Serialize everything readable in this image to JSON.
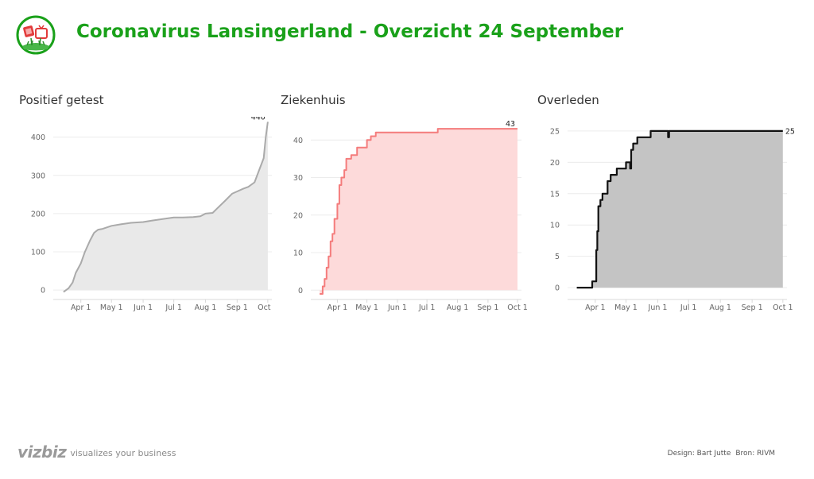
{
  "header": {
    "title": "Coronavirus Lansingerland - Overzicht 24 September",
    "logo_icon": "flowers-tv-logo-icon"
  },
  "colors": {
    "title": "#1aa11a",
    "positief_line": "#aaaaaa",
    "positief_fill": "#e9e9e9",
    "ziekenhuis_line": "#f47c7c",
    "ziekenhuis_fill": "#fddada",
    "overleden_line": "#111111",
    "overleden_fill": "#c4c4c4"
  },
  "chart_data": [
    {
      "type": "area",
      "title": "Positief getest",
      "xlabel": "",
      "ylabel": "",
      "x_tick_labels": [
        "Apr 1",
        "May 1",
        "Jun 1",
        "Jul 1",
        "Aug 1",
        "Sep 1",
        "Oct 1"
      ],
      "y_ticks": [
        0,
        100,
        200,
        300,
        400
      ],
      "ylim": [
        -10,
        445
      ],
      "grid": true,
      "end_label": "440",
      "series": [
        {
          "x": [
            "2020-03-15",
            "2020-03-20",
            "2020-03-24",
            "2020-03-27",
            "2020-04-01",
            "2020-04-05",
            "2020-04-10",
            "2020-04-14",
            "2020-04-18",
            "2020-04-22",
            "2020-05-01",
            "2020-05-10",
            "2020-05-20",
            "2020-06-01",
            "2020-06-10",
            "2020-06-20",
            "2020-07-01",
            "2020-07-10",
            "2020-07-20",
            "2020-07-27",
            "2020-08-01",
            "2020-08-08",
            "2020-08-13",
            "2020-08-20",
            "2020-08-27",
            "2020-09-01",
            "2020-09-07",
            "2020-09-12",
            "2020-09-18",
            "2020-09-22",
            "2020-09-27",
            "2020-09-29",
            "2020-10-01"
          ],
          "values": [
            -5,
            5,
            20,
            45,
            70,
            100,
            130,
            150,
            158,
            160,
            168,
            172,
            176,
            178,
            182,
            186,
            190,
            190,
            191,
            193,
            200,
            202,
            215,
            233,
            252,
            258,
            265,
            270,
            282,
            310,
            345,
            400,
            440
          ]
        }
      ]
    },
    {
      "type": "area",
      "title": "Ziekenhuis",
      "xlabel": "",
      "ylabel": "",
      "x_tick_labels": [
        "Apr 1",
        "May 1",
        "Jun 1",
        "Jul 1",
        "Aug 1",
        "Sep 1",
        "Oct 1"
      ],
      "y_ticks": [
        0,
        10,
        20,
        30,
        40
      ],
      "ylim": [
        -1,
        44.5
      ],
      "grid": true,
      "end_label": "43",
      "series": [
        {
          "x": [
            "2020-03-14",
            "2020-03-17",
            "2020-03-19",
            "2020-03-21",
            "2020-03-23",
            "2020-03-25",
            "2020-03-27",
            "2020-03-29",
            "2020-04-01",
            "2020-04-03",
            "2020-04-05",
            "2020-04-08",
            "2020-04-10",
            "2020-04-12",
            "2020-04-15",
            "2020-04-18",
            "2020-04-21",
            "2020-04-25",
            "2020-05-01",
            "2020-05-05",
            "2020-05-10",
            "2020-06-01",
            "2020-06-20",
            "2020-07-10",
            "2020-07-12",
            "2020-08-01",
            "2020-09-01",
            "2020-10-01"
          ],
          "values": [
            -1,
            1,
            3,
            6,
            9,
            13,
            15,
            19,
            23,
            28,
            30,
            32,
            35,
            35,
            36,
            36,
            38,
            38,
            40,
            41,
            42,
            42,
            42,
            42,
            43,
            43,
            43,
            43
          ]
        }
      ]
    },
    {
      "type": "area",
      "title": "Overleden",
      "xlabel": "",
      "ylabel": "",
      "x_tick_labels": [
        "Apr 1",
        "May 1",
        "Jun 1",
        "Jul 1",
        "Aug 1",
        "Sep 1",
        "Oct 1"
      ],
      "y_ticks": [
        0,
        5,
        10,
        15,
        20,
        25
      ],
      "ylim": [
        -1,
        26
      ],
      "grid": true,
      "end_label": "25",
      "series": [
        {
          "x": [
            "2020-03-14",
            "2020-03-28",
            "2020-03-29",
            "2020-03-31",
            "2020-04-02",
            "2020-04-03",
            "2020-04-04",
            "2020-04-06",
            "2020-04-08",
            "2020-04-10",
            "2020-04-13",
            "2020-04-16",
            "2020-04-20",
            "2020-04-22",
            "2020-04-26",
            "2020-05-01",
            "2020-05-05",
            "2020-05-06",
            "2020-05-08",
            "2020-05-10",
            "2020-05-12",
            "2020-05-16",
            "2020-05-18",
            "2020-05-25",
            "2020-06-01",
            "2020-06-10",
            "2020-06-11",
            "2020-06-12",
            "2020-06-15",
            "2020-07-01",
            "2020-10-01"
          ],
          "values": [
            0,
            0,
            1,
            1,
            6,
            9,
            13,
            14,
            15,
            15,
            17,
            18,
            18,
            19,
            19,
            20,
            19,
            22,
            23,
            23,
            24,
            24,
            24,
            25,
            25,
            25,
            24,
            25,
            25,
            25,
            25
          ]
        }
      ]
    }
  ],
  "footer": {
    "brand": "vizbiz",
    "tagline": "visualizes your business",
    "design_credit": "Design: Bart Jutte",
    "source_credit": "Bron: RIVM"
  }
}
